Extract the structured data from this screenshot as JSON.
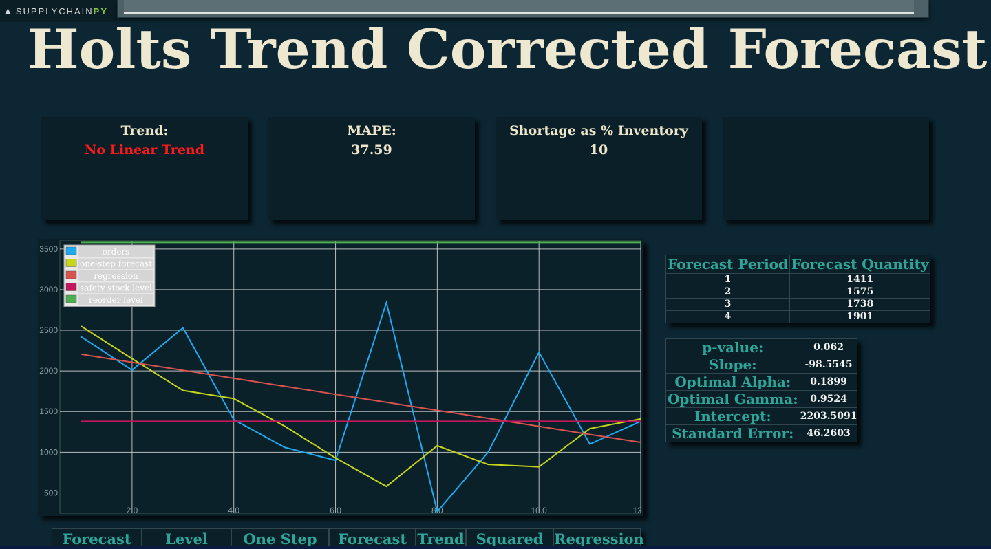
{
  "brand": {
    "name": "SUPPLYCHAIN",
    "suffix": "PY"
  },
  "page_title": "Holts Trend Corrected Forecast",
  "cards": [
    {
      "label": "Trend:",
      "value": "No Linear Trend",
      "alert": true
    },
    {
      "label": "MAPE:",
      "value": "37.59",
      "alert": false
    },
    {
      "label": "Shortage as % Inventory",
      "value": "10",
      "alert": false
    },
    {
      "label": "",
      "value": "",
      "alert": false
    }
  ],
  "chart_data": {
    "type": "line",
    "x": [
      1,
      2,
      3,
      4,
      5,
      6,
      7,
      8,
      9,
      10,
      11,
      12
    ],
    "xticks": [
      "2.0",
      "4.0",
      "6.0",
      "8.0",
      "10.0",
      "12.0"
    ],
    "yticks": [
      "500",
      "1000",
      "1500",
      "2000",
      "2500",
      "3000",
      "3500"
    ],
    "xlim": [
      1,
      12
    ],
    "ylim": [
      250,
      3600
    ],
    "legend": "top-left",
    "grid": true,
    "series": [
      {
        "name": "orders",
        "color": "#1eaaf1",
        "values": [
          2420,
          2010,
          2530,
          1400,
          1060,
          900,
          2840,
          270,
          1000,
          2230,
          1100,
          1380
        ]
      },
      {
        "name": "one-step forecast",
        "color": "#c6d61a",
        "values": [
          2550,
          2150,
          1760,
          1660,
          1320,
          930,
          580,
          1080,
          850,
          820,
          1290,
          1410
        ]
      },
      {
        "name": "regression",
        "color": "#d9534f",
        "values": [
          2205,
          2106,
          2008,
          1909,
          1811,
          1712,
          1614,
          1515,
          1417,
          1318,
          1219,
          1121
        ]
      },
      {
        "name": "safety stock level",
        "color": "#c2185b",
        "values": [
          1380,
          1380,
          1380,
          1380,
          1380,
          1380,
          1380,
          1380,
          1380,
          1380,
          1380,
          1380
        ]
      },
      {
        "name": "reorder level",
        "color": "#4caf50",
        "values": [
          3660,
          3660,
          3660,
          3660,
          3660,
          3660,
          3660,
          3660,
          3660,
          3660,
          3660,
          3660
        ]
      }
    ]
  },
  "forecast_table": {
    "headers": [
      "Forecast Period",
      "Forecast Quantity"
    ],
    "rows": [
      [
        "1",
        "1411"
      ],
      [
        "2",
        "1575"
      ],
      [
        "3",
        "1738"
      ],
      [
        "4",
        "1901"
      ]
    ]
  },
  "stats": [
    {
      "label": "p-value:",
      "value": "0.062"
    },
    {
      "label": "Slope:",
      "value": "-98.5545"
    },
    {
      "label": "Optimal Alpha:",
      "value": "0.1899"
    },
    {
      "label": "Optimal Gamma:",
      "value": "0.9524"
    },
    {
      "label": "Intercept:",
      "value": "2203.5091"
    },
    {
      "label": "Standard Error:",
      "value": "46.2603"
    }
  ],
  "bottom_headers": [
    "Forecast",
    "Level",
    "One Step",
    "Forecast",
    "Trend",
    "Squared",
    "Regression"
  ]
}
